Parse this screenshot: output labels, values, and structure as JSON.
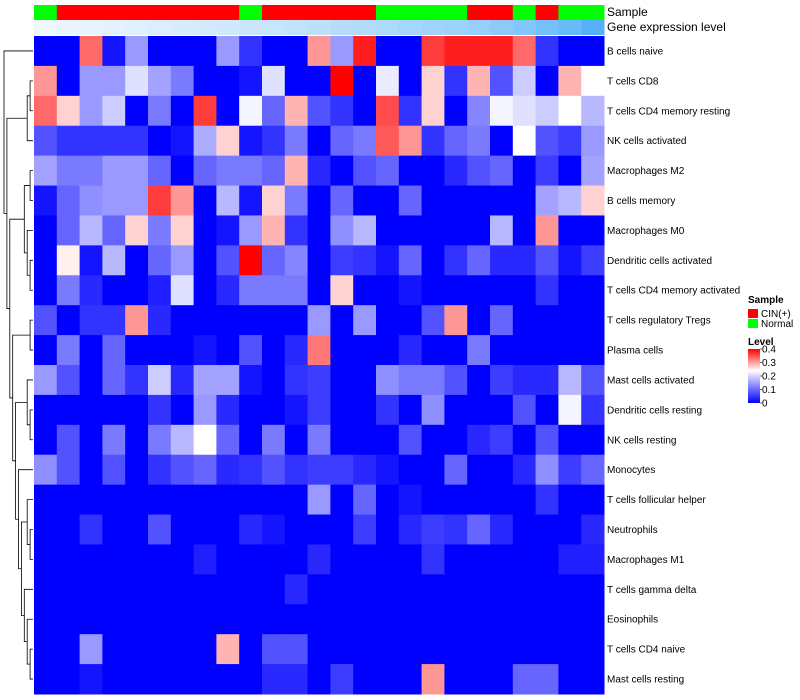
{
  "chart_data": {
    "type": "heatmap",
    "annotation_tracks": [
      "Sample",
      "Gene expression level"
    ],
    "rows": [
      "B cells naive",
      "T cells CD8",
      "T cells CD4 memory resting",
      "NK cells activated",
      "Macrophages M2",
      "B cells memory",
      "Macrophages M0",
      "Dendritic cells activated",
      "T cells CD4 memory activated",
      "T cells regulatory  Tregs",
      "Plasma cells",
      "Mast cells activated",
      "Dendritic cells resting",
      "NK cells resting",
      "Monocytes",
      "T cells follicular helper",
      "Neutrophils",
      "Macrophages M1",
      "T cells gamma delta",
      "Eosinophils",
      "T cells CD4 naive",
      "Mast cells resting"
    ],
    "sample_annotation": [
      "Normal",
      "CIN(+)",
      "CIN(+)",
      "CIN(+)",
      "CIN(+)",
      "CIN(+)",
      "CIN(+)",
      "CIN(+)",
      "CIN(+)",
      "Normal",
      "CIN(+)",
      "CIN(+)",
      "CIN(+)",
      "CIN(+)",
      "CIN(+)",
      "Normal",
      "Normal",
      "Normal",
      "Normal",
      "CIN(+)",
      "CIN(+)",
      "Normal",
      "CIN(+)",
      "Normal",
      "Normal"
    ],
    "expression_level": [
      0.05,
      0.08,
      0.1,
      0.12,
      0.14,
      0.17,
      0.2,
      0.22,
      0.25,
      0.28,
      0.3,
      0.33,
      0.36,
      0.4,
      0.43,
      0.46,
      0.5,
      0.53,
      0.56,
      0.6,
      0.66,
      0.72,
      0.8,
      0.88,
      1.0
    ],
    "values": [
      [
        0.0,
        0.0,
        0.35,
        0.02,
        0.15,
        0.0,
        0.0,
        0.0,
        0.15,
        0.05,
        0.0,
        0.0,
        0.32,
        0.15,
        0.4,
        0.0,
        0.0,
        0.38,
        0.4,
        0.4,
        0.4,
        0.35,
        0.05,
        0.0,
        0.0
      ],
      [
        0.32,
        0.0,
        0.15,
        0.15,
        0.22,
        0.16,
        0.12,
        0.0,
        0.0,
        0.02,
        0.22,
        0.0,
        0.0,
        0.42,
        0.0,
        0.23,
        0.0,
        0.28,
        0.05,
        0.3,
        0.08,
        0.2,
        0.0,
        0.3,
        0.25
      ],
      [
        0.35,
        0.28,
        0.15,
        0.2,
        0.0,
        0.12,
        0.0,
        0.38,
        0.0,
        0.24,
        0.1,
        0.3,
        0.08,
        0.05,
        0.0,
        0.37,
        0.05,
        0.28,
        0.0,
        0.13,
        0.24,
        0.22,
        0.2,
        0.25,
        0.18
      ],
      [
        0.08,
        0.05,
        0.05,
        0.05,
        0.05,
        0.0,
        0.02,
        0.17,
        0.28,
        0.02,
        0.05,
        0.12,
        0.0,
        0.1,
        0.12,
        0.36,
        0.32,
        0.05,
        0.1,
        0.12,
        0.0,
        0.25,
        0.08,
        0.06,
        0.15
      ],
      [
        0.16,
        0.12,
        0.12,
        0.15,
        0.15,
        0.1,
        0.0,
        0.1,
        0.12,
        0.12,
        0.1,
        0.3,
        0.04,
        0.0,
        0.08,
        0.1,
        0.0,
        0.0,
        0.04,
        0.08,
        0.1,
        0.0,
        0.06,
        0.0,
        0.16
      ],
      [
        0.02,
        0.1,
        0.14,
        0.15,
        0.15,
        0.38,
        0.32,
        0.0,
        0.18,
        0.02,
        0.28,
        0.12,
        0.0,
        0.1,
        0.0,
        0.0,
        0.1,
        0.0,
        0.0,
        0.0,
        0.0,
        0.0,
        0.16,
        0.18,
        0.28
      ],
      [
        0.0,
        0.1,
        0.18,
        0.1,
        0.28,
        0.12,
        0.28,
        0.0,
        0.02,
        0.15,
        0.3,
        0.05,
        0.0,
        0.14,
        0.18,
        0.0,
        0.0,
        0.0,
        0.0,
        0.0,
        0.18,
        0.0,
        0.32,
        0.0,
        0.0
      ],
      [
        0.0,
        0.26,
        0.02,
        0.18,
        0.0,
        0.1,
        0.15,
        0.0,
        0.08,
        0.42,
        0.1,
        0.13,
        0.0,
        0.06,
        0.05,
        0.02,
        0.1,
        0.0,
        0.05,
        0.1,
        0.04,
        0.04,
        0.08,
        0.02,
        0.06
      ],
      [
        0.0,
        0.12,
        0.04,
        0.0,
        0.0,
        0.03,
        0.22,
        0.0,
        0.04,
        0.12,
        0.12,
        0.12,
        0.0,
        0.28,
        0.0,
        0.0,
        0.02,
        0.0,
        0.0,
        0.0,
        0.0,
        0.0,
        0.05,
        0.0,
        0.0
      ],
      [
        0.08,
        0.0,
        0.05,
        0.05,
        0.32,
        0.04,
        0.0,
        0.0,
        0.0,
        0.0,
        0.0,
        0.0,
        0.15,
        0.0,
        0.15,
        0.0,
        0.0,
        0.08,
        0.32,
        0.0,
        0.1,
        0.0,
        0.0,
        0.0,
        0.0
      ],
      [
        0.0,
        0.12,
        0.0,
        0.1,
        0.0,
        0.0,
        0.0,
        0.02,
        0.0,
        0.08,
        0.0,
        0.04,
        0.34,
        0.0,
        0.0,
        0.0,
        0.04,
        0.0,
        0.0,
        0.12,
        0.0,
        0.0,
        0.0,
        0.0,
        0.0
      ],
      [
        0.15,
        0.08,
        0.0,
        0.1,
        0.05,
        0.2,
        0.04,
        0.16,
        0.16,
        0.02,
        0.0,
        0.05,
        0.06,
        0.0,
        0.0,
        0.14,
        0.12,
        0.12,
        0.08,
        0.0,
        0.06,
        0.04,
        0.04,
        0.18,
        0.08
      ],
      [
        0.0,
        0.0,
        0.0,
        0.0,
        0.0,
        0.05,
        0.0,
        0.15,
        0.04,
        0.0,
        0.0,
        0.02,
        0.06,
        0.0,
        0.0,
        0.05,
        0.0,
        0.14,
        0.0,
        0.0,
        0.0,
        0.08,
        0.0,
        0.24,
        0.05
      ],
      [
        0.0,
        0.08,
        0.0,
        0.12,
        0.0,
        0.12,
        0.18,
        0.25,
        0.1,
        0.0,
        0.12,
        0.0,
        0.12,
        0.0,
        0.0,
        0.0,
        0.08,
        0.0,
        0.0,
        0.04,
        0.06,
        0.0,
        0.08,
        0.0,
        0.0
      ],
      [
        0.14,
        0.08,
        0.0,
        0.08,
        0.0,
        0.05,
        0.08,
        0.1,
        0.04,
        0.05,
        0.08,
        0.05,
        0.06,
        0.06,
        0.04,
        0.02,
        0.0,
        0.0,
        0.1,
        0.0,
        0.0,
        0.04,
        0.14,
        0.06,
        0.1
      ],
      [
        0.0,
        0.0,
        0.0,
        0.0,
        0.0,
        0.0,
        0.0,
        0.0,
        0.0,
        0.0,
        0.0,
        0.0,
        0.15,
        0.0,
        0.1,
        0.0,
        0.02,
        0.0,
        0.0,
        0.0,
        0.0,
        0.0,
        0.05,
        0.0,
        0.0
      ],
      [
        0.0,
        0.0,
        0.05,
        0.0,
        0.0,
        0.08,
        0.0,
        0.0,
        0.0,
        0.04,
        0.02,
        0.0,
        0.0,
        0.0,
        0.06,
        0.0,
        0.04,
        0.06,
        0.05,
        0.1,
        0.04,
        0.0,
        0.0,
        0.0,
        0.04
      ],
      [
        0.0,
        0.0,
        0.0,
        0.0,
        0.0,
        0.0,
        0.0,
        0.03,
        0.0,
        0.0,
        0.0,
        0.0,
        0.04,
        0.0,
        0.0,
        0.0,
        0.0,
        0.05,
        0.0,
        0.0,
        0.0,
        0.0,
        0.0,
        0.03,
        0.03
      ],
      [
        0.0,
        0.0,
        0.0,
        0.0,
        0.0,
        0.0,
        0.0,
        0.0,
        0.0,
        0.0,
        0.0,
        0.04,
        0.0,
        0.0,
        0.0,
        0.0,
        0.0,
        0.0,
        0.0,
        0.0,
        0.0,
        0.0,
        0.0,
        0.0,
        0.0
      ],
      [
        0.0,
        0.0,
        0.0,
        0.0,
        0.0,
        0.0,
        0.0,
        0.0,
        0.0,
        0.0,
        0.0,
        0.0,
        0.0,
        0.0,
        0.0,
        0.0,
        0.0,
        0.0,
        0.0,
        0.0,
        0.0,
        0.0,
        0.0,
        0.0,
        0.0
      ],
      [
        0.0,
        0.0,
        0.15,
        0.0,
        0.0,
        0.0,
        0.0,
        0.0,
        0.3,
        0.0,
        0.08,
        0.08,
        0.0,
        0.0,
        0.0,
        0.0,
        0.0,
        0.0,
        0.0,
        0.0,
        0.0,
        0.0,
        0.0,
        0.0,
        0.0
      ],
      [
        0.0,
        0.0,
        0.02,
        0.0,
        0.0,
        0.0,
        0.0,
        0.0,
        0.0,
        0.0,
        0.04,
        0.04,
        0.0,
        0.06,
        0.0,
        0.0,
        0.0,
        0.32,
        0.0,
        0.0,
        0.0,
        0.1,
        0.1,
        0.0,
        0.0
      ]
    ],
    "legend": {
      "sample_title": "Sample",
      "sample_entries": [
        {
          "label": "CIN(+)",
          "color": "#FF0000"
        },
        {
          "label": "Normal",
          "color": "#00FF00"
        }
      ],
      "level_title": "Level",
      "level_ticks": [
        "0.4",
        "0.3",
        "0.2",
        "0.1",
        "0"
      ],
      "level_tick_values": [
        0.4,
        0.3,
        0.2,
        0.1,
        0
      ]
    },
    "value_range": [
      0,
      0.42
    ],
    "colors": {
      "low": "#0000FF",
      "mid": "#FFFFFF",
      "high": "#FF0000",
      "mid_value": 0.25,
      "expr_low": "#F7FBFF",
      "expr_high": "#56B1F7"
    }
  }
}
